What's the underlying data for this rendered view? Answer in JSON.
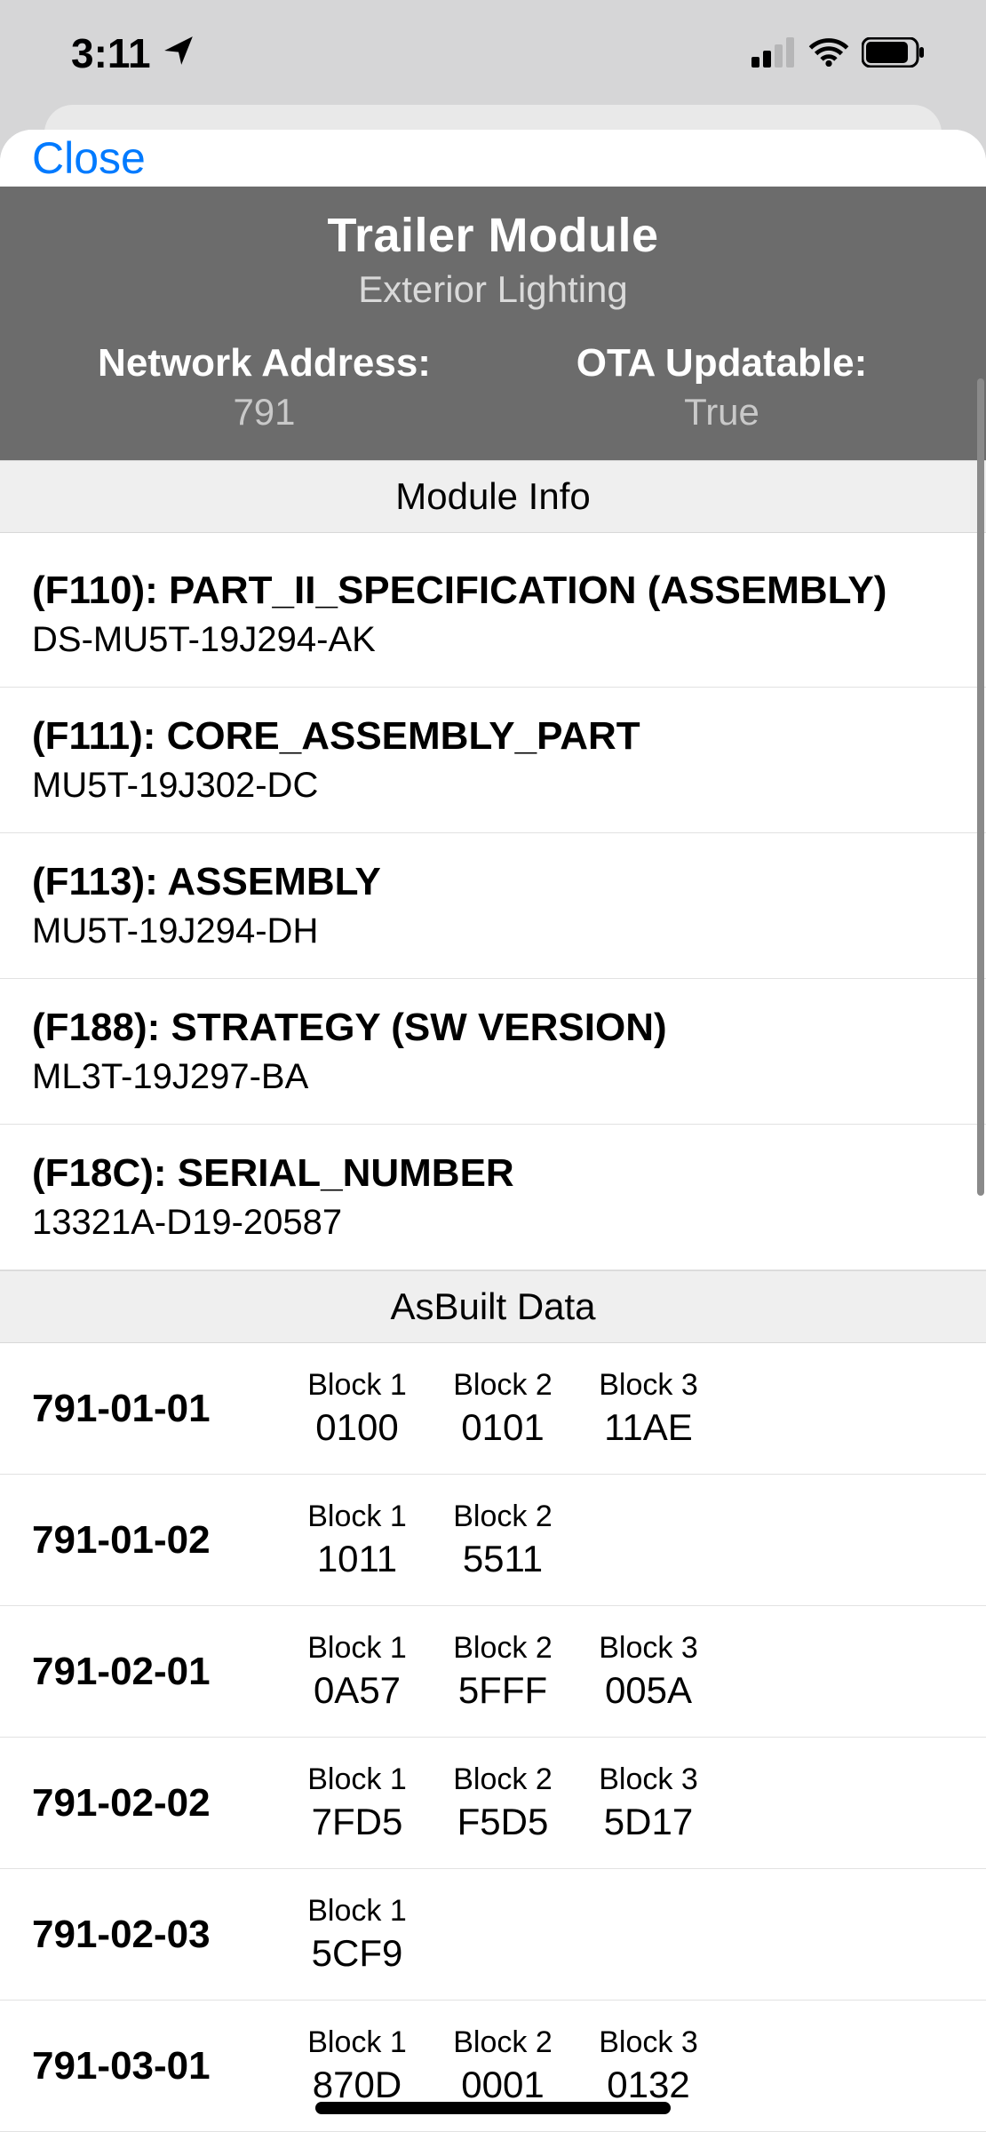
{
  "status": {
    "time": "3:11",
    "signal_bars": 2,
    "wifi": true,
    "battery_pct": 80
  },
  "close_label": "Close",
  "module": {
    "title": "Trailer Module",
    "subtitle": "Exterior Lighting",
    "network_address_label": "Network Address:",
    "network_address_value": "791",
    "ota_label": "OTA Updatable:",
    "ota_value": "True"
  },
  "sections": {
    "info_header": "Module Info",
    "asbuilt_header": "AsBuilt Data"
  },
  "info": [
    {
      "title": "(F110): PART_II_SPECIFICATION (ASSEMBLY)",
      "value": "DS-MU5T-19J294-AK"
    },
    {
      "title": "(F111): CORE_ASSEMBLY_PART",
      "value": "MU5T-19J302-DC"
    },
    {
      "title": "(F113): ASSEMBLY",
      "value": "MU5T-19J294-DH"
    },
    {
      "title": "(F188): STRATEGY (SW VERSION)",
      "value": "ML3T-19J297-BA"
    },
    {
      "title": "(F18C): SERIAL_NUMBER",
      "value": "13321A-D19-20587"
    }
  ],
  "asbuilt": [
    {
      "addr": "791-01-01",
      "blocks": [
        {
          "label": "Block 1",
          "value": "0100"
        },
        {
          "label": "Block 2",
          "value": "0101"
        },
        {
          "label": "Block 3",
          "value": "11AE"
        }
      ]
    },
    {
      "addr": "791-01-02",
      "blocks": [
        {
          "label": "Block 1",
          "value": "1011"
        },
        {
          "label": "Block 2",
          "value": "5511"
        }
      ]
    },
    {
      "addr": "791-02-01",
      "blocks": [
        {
          "label": "Block 1",
          "value": "0A57"
        },
        {
          "label": "Block 2",
          "value": "5FFF"
        },
        {
          "label": "Block 3",
          "value": "005A"
        }
      ]
    },
    {
      "addr": "791-02-02",
      "blocks": [
        {
          "label": "Block 1",
          "value": "7FD5"
        },
        {
          "label": "Block 2",
          "value": "F5D5"
        },
        {
          "label": "Block 3",
          "value": "5D17"
        }
      ]
    },
    {
      "addr": "791-02-03",
      "blocks": [
        {
          "label": "Block 1",
          "value": "5CF9"
        }
      ]
    },
    {
      "addr": "791-03-01",
      "blocks": [
        {
          "label": "Block 1",
          "value": "870D"
        },
        {
          "label": "Block 2",
          "value": "0001"
        },
        {
          "label": "Block 3",
          "value": "0132"
        }
      ]
    }
  ],
  "colors": {
    "accent": "#007aff",
    "header_bg": "#6c6c6c",
    "section_bg": "#efefef",
    "divider": "#e2e2e2",
    "background": "#d6d6d7"
  }
}
